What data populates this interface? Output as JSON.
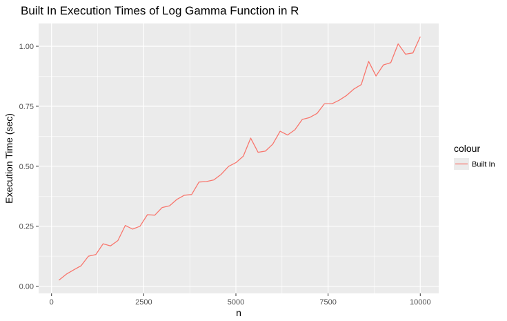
{
  "chart_data": {
    "type": "line",
    "title": "Built In Execution Times of Log Gamma Function in R",
    "xlabel": "n",
    "ylabel": "Execution Time (sec)",
    "xlim": [
      -350,
      10500
    ],
    "ylim": [
      -0.03,
      1.095
    ],
    "x_ticks": [
      0,
      2500,
      5000,
      7500,
      10000
    ],
    "x_tick_labels": [
      "0",
      "2500",
      "5000",
      "7500",
      "10000"
    ],
    "y_ticks": [
      0.0,
      0.25,
      0.5,
      0.75,
      1.0
    ],
    "y_tick_labels": [
      "0.00",
      "0.25",
      "0.50",
      "0.75",
      "1.00"
    ],
    "grid": true,
    "legend": {
      "title": "colour",
      "placement": "right"
    },
    "series": [
      {
        "name": "Built In",
        "color": "#f8766d",
        "x": [
          200,
          400,
          600,
          800,
          1000,
          1200,
          1400,
          1600,
          1800,
          2000,
          2200,
          2400,
          2600,
          2800,
          3000,
          3200,
          3400,
          3600,
          3800,
          4000,
          4200,
          4400,
          4600,
          4800,
          5000,
          5200,
          5400,
          5600,
          5800,
          6000,
          6200,
          6400,
          6600,
          6800,
          7000,
          7200,
          7400,
          7600,
          7800,
          8000,
          8200,
          8400,
          8600,
          8800,
          9000,
          9200,
          9400,
          9600,
          9800,
          10000
        ],
        "y": [
          0.025,
          0.05,
          0.068,
          0.085,
          0.125,
          0.132,
          0.177,
          0.168,
          0.19,
          0.253,
          0.238,
          0.25,
          0.298,
          0.296,
          0.328,
          0.335,
          0.362,
          0.379,
          0.382,
          0.434,
          0.436,
          0.443,
          0.466,
          0.499,
          0.515,
          0.542,
          0.617,
          0.558,
          0.563,
          0.592,
          0.646,
          0.63,
          0.652,
          0.695,
          0.703,
          0.72,
          0.76,
          0.76,
          0.775,
          0.795,
          0.822,
          0.84,
          0.937,
          0.876,
          0.922,
          0.932,
          1.01,
          0.967,
          0.972,
          1.04
        ]
      }
    ]
  }
}
